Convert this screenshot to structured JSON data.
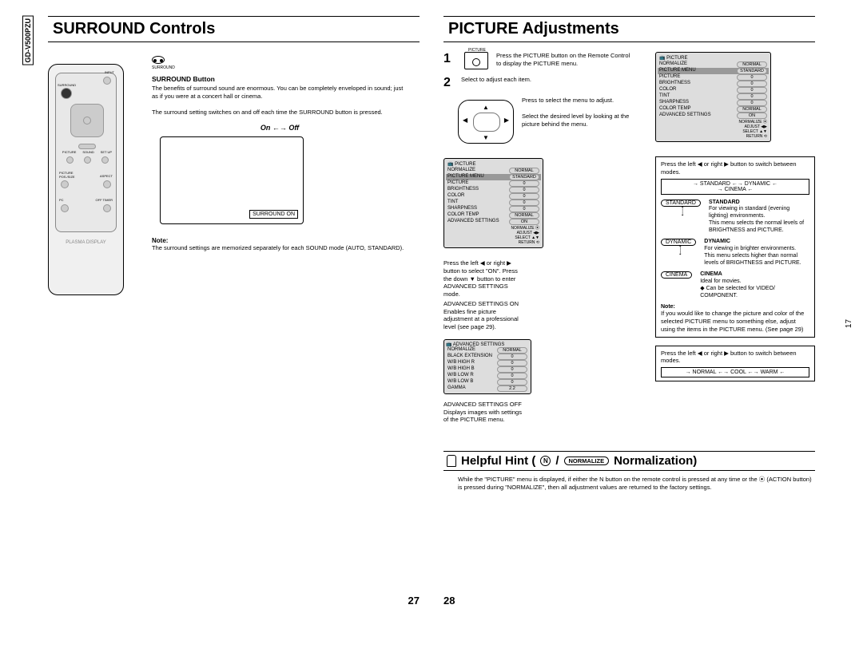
{
  "spine": "GD-V500PZU",
  "side_page": "17",
  "left": {
    "title": "SURROUND Controls",
    "surround_icon_label": "SURROUND",
    "btn_heading": "SURROUND Button",
    "btn_desc": "The benefits of surround sound are enormous. You can be completely enveloped in sound; just as if you were at a concert hall or cinema.",
    "toggle_desc": "The surround setting switches on and off each time the SURROUND button is pressed.",
    "toggle_label": "On ←→ Off",
    "osd": "SURROUND   ON",
    "note_label": "Note:",
    "note_text": "The surround settings are memorized separately for each SOUND mode (AUTO, STANDARD).",
    "remote_brand": "PLASMA DISPLAY",
    "remote_btns": {
      "input": "INPUT",
      "surround": "SURROUND",
      "picture": "PICTURE",
      "sound": "SOUND",
      "setup": "SET UP",
      "picture_pos": "PICTURE POS./SIZE",
      "aspect": "ASPECT",
      "pc": "PC",
      "off_timer": "OFF TIMER"
    },
    "page": "27"
  },
  "right": {
    "title": "PICTURE Adjustments",
    "step1_num": "1",
    "step1_icon_label": "PICTURE",
    "step1_text": "Press the PICTURE button on the Remote Control to display the PICTURE menu.",
    "step2_num": "2",
    "step2_text": "Select to adjust each item.",
    "step2_sub1": "Press to select the menu to adjust.",
    "step2_sub2": "Select the desired level by looking at the picture behind the menu.",
    "menu1": {
      "title": "PICTURE",
      "rows": [
        [
          "NORMALIZE",
          "NORMAL"
        ],
        [
          "PICTURE MENU",
          "STANDARD"
        ],
        [
          "PICTURE",
          "0"
        ],
        [
          "BRIGHTNESS",
          "0"
        ],
        [
          "COLOR",
          "0"
        ],
        [
          "TINT",
          "0"
        ],
        [
          "SHARPNESS",
          "0"
        ],
        [
          "COLOR TEMP",
          "NORMAL"
        ],
        [
          "ADVANCED SETTINGS",
          "ON"
        ]
      ],
      "foot": "NORMALIZE ⦿   ADJUST ◀▶   SELECT ▲▼   RETURN ⟲"
    },
    "adv_hint": "Press the left ◀ or right ▶ button to select \"ON\". Press the down ▼ button to enter ADVANCED SETTINGS mode.",
    "adv_on_label": "ADVANCED SETTINGS ON",
    "adv_on_text": "Enables fine picture adjustment at a professional level (see page 29).",
    "adv_menu": {
      "title": "ADVANCED SETTINGS",
      "rows": [
        [
          "NORMALIZE",
          "NORMAL"
        ],
        [
          "BLACK EXTENSION",
          "0"
        ],
        [
          "W/B HIGH R",
          "0"
        ],
        [
          "W/B HIGH B",
          "0"
        ],
        [
          "W/B LOW R",
          "0"
        ],
        [
          "W/B LOW B",
          "0"
        ],
        [
          "GAMMA",
          "2.2"
        ]
      ]
    },
    "adv_off_label": "ADVANCED SETTINGS OFF",
    "adv_off_text": "Displays images with settings of the PICTURE menu.",
    "mode_switch_text": "Press the left ◀ or right ▶ button to switch between modes.",
    "mode_cycle": "→ STANDARD ←→ DYNAMIC ←",
    "mode_cycle2": "→ CINEMA ←",
    "modes": [
      {
        "chip": "STANDARD",
        "name": "STANDARD",
        "desc": "For viewing in standard (evening lighting) environments.\nThis menu selects the normal levels of BRIGHTNESS and PICTURE."
      },
      {
        "chip": "DYNAMIC",
        "name": "DYNAMIC",
        "desc": "For viewing in brighter environments.\nThis menu selects higher than normal levels of BRIGHTNESS and PICTURE."
      },
      {
        "chip": "CINEMA",
        "name": "CINEMA",
        "desc": "Ideal for movies.\n◆ Can be selected for VIDEO/ COMPONENT."
      }
    ],
    "mode_note_label": "Note:",
    "mode_note": "If you would like to change the picture and color of the selected PICTURE menu to something else, adjust using the items in the PICTURE menu. (See page 29)",
    "temp_switch_text": "Press the left ◀ or right ▶ button to switch between modes.",
    "temp_cycle": "→ NORMAL ←→ COOL ←→ WARM ←",
    "hint_title1": "Helpful Hint (",
    "hint_n": "N",
    "hint_slash": " / ",
    "hint_norm": "NORMALIZE",
    "hint_title2": " Normalization)",
    "hint_body": "While the \"PICTURE\" menu is displayed, if either the N button on the remote control is pressed at any time or the ⦿ (ACTION button) is pressed during \"NORMALIZE\", then all adjustment values are returned to the factory settings.",
    "page": "28"
  }
}
